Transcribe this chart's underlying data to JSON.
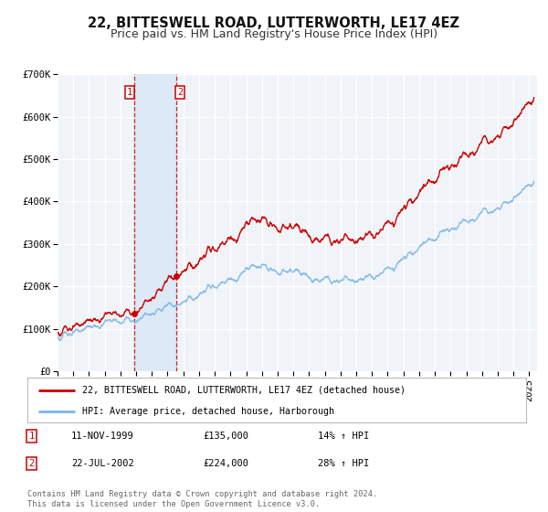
{
  "title": "22, BITTESWELL ROAD, LUTTERWORTH, LE17 4EZ",
  "subtitle": "Price paid vs. HM Land Registry's House Price Index (HPI)",
  "ylim": [
    0,
    700000
  ],
  "xlim_start": 1995.0,
  "xlim_end": 2025.5,
  "yticks": [
    0,
    100000,
    200000,
    300000,
    400000,
    500000,
    600000,
    700000
  ],
  "ytick_labels": [
    "£0",
    "£100K",
    "£200K",
    "£300K",
    "£400K",
    "£500K",
    "£600K",
    "£700K"
  ],
  "background_color": "#ffffff",
  "plot_bg_color": "#f0f4f8",
  "grid_color": "#ffffff",
  "hpi_color": "#7ab4e8",
  "price_color": "#cc0000",
  "marker1_date": 1999.87,
  "marker2_date": 2002.55,
  "marker1_price": 135000,
  "marker2_price": 224000,
  "shade_color": "#dce9f7",
  "legend_label_price": "22, BITTESWELL ROAD, LUTTERWORTH, LE17 4EZ (detached house)",
  "legend_label_hpi": "HPI: Average price, detached house, Harborough",
  "table_row1_num": "1",
  "table_row1_date": "11-NOV-1999",
  "table_row1_price": "£135,000",
  "table_row1_hpi": "14% ↑ HPI",
  "table_row2_num": "2",
  "table_row2_date": "22-JUL-2002",
  "table_row2_price": "£224,000",
  "table_row2_hpi": "28% ↑ HPI",
  "footer": "Contains HM Land Registry data © Crown copyright and database right 2024.\nThis data is licensed under the Open Government Licence v3.0.",
  "title_fontsize": 10.5,
  "subtitle_fontsize": 9,
  "tick_fontsize": 7.5
}
